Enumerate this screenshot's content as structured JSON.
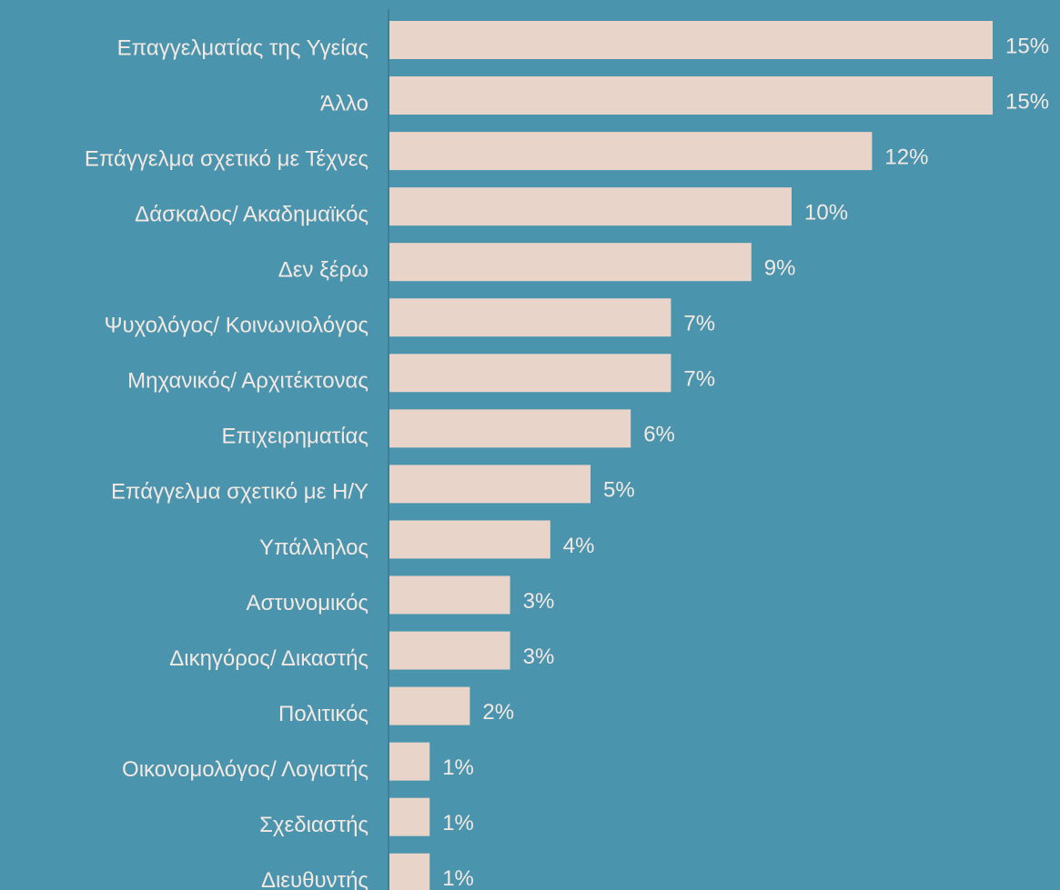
{
  "chart_data": {
    "type": "barh",
    "categories": [
      "Επαγγελματίας της Υγείας",
      "Άλλο",
      "Επάγγελμα σχετικό με Τέχνες",
      "Δάσκαλος/ Ακαδημαϊκός",
      "Δεν ξέρω",
      "Ψυχολόγος/ Κοινωνιολόγος",
      "Μηχανικός/ Αρχιτέκτονας",
      "Επιχειρηματίας",
      "Επάγγελμα σχετικό με Η/Υ",
      "Υπάλληλος",
      "Αστυνομικός",
      "Δικηγόρος/ Δικαστής",
      "Πολιτικός",
      "Οικονομολόγος/ Λογιστής",
      "Σχεδιαστής",
      "Διευθυντής"
    ],
    "values": [
      15,
      15,
      12,
      10,
      9,
      7,
      7,
      6,
      5,
      4,
      3,
      3,
      2,
      1,
      1,
      1
    ],
    "value_labels": [
      "15%",
      "15%",
      "12%",
      "10%",
      "9%",
      "7%",
      "7%",
      "6%",
      "5%",
      "4%",
      "3%",
      "3%",
      "2%",
      "1%",
      "1%",
      "1%"
    ],
    "color": "#e8d4c8"
  }
}
